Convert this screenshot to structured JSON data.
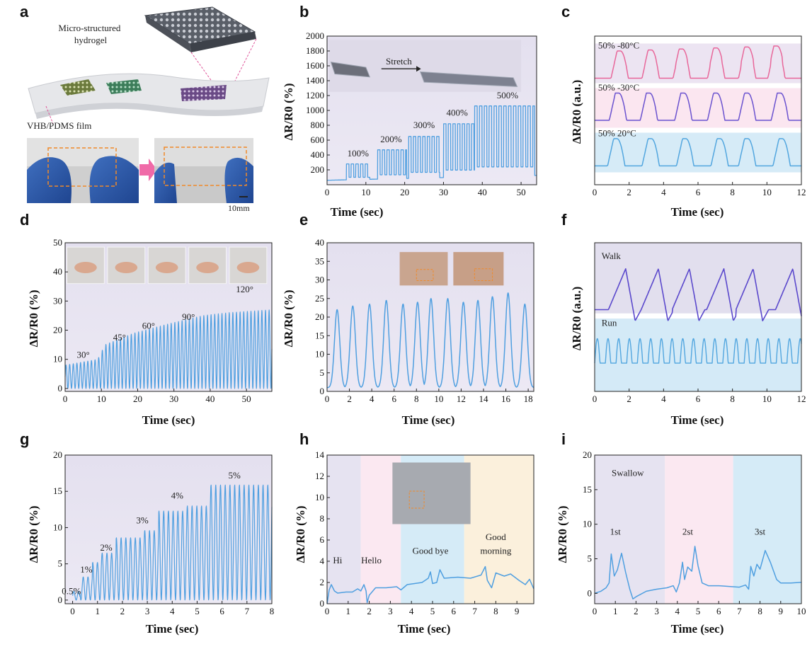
{
  "panels": {
    "a": {
      "label": "a",
      "hydrogel_label": "Micro-structured hydrogel",
      "hydrogel_line1": "Micro-structured",
      "hydrogel_line2": "hydrogel",
      "film_label": "VHB/PDMS film",
      "scale_label": "10mm"
    },
    "b": {
      "label": "b",
      "ylabel": "ΔR/R0 (%)",
      "xlabel": "Time (sec)",
      "inset_label": "Stretch"
    },
    "c": {
      "label": "c",
      "ylabel": "ΔR/R0 (a.u.)",
      "xlabel": "Time (sec)"
    },
    "d": {
      "label": "d",
      "ylabel": "ΔR/R0 (%)",
      "xlabel": "Time (sec)"
    },
    "e": {
      "label": "e",
      "ylabel": "ΔR/R0 (%)",
      "xlabel": "Time (sec)"
    },
    "f": {
      "label": "f",
      "ylabel": "ΔR/R0 (a.u.)",
      "xlabel": "Time (sec)"
    },
    "g": {
      "label": "g",
      "ylabel": "ΔR/R0 (%)",
      "xlabel": "Time (sec)"
    },
    "h": {
      "label": "h",
      "ylabel": "ΔR/R0 (%)",
      "xlabel": "Time (sec)"
    },
    "i": {
      "label": "i",
      "ylabel": "ΔR/R0 (%)",
      "xlabel": "Time (sec)"
    }
  },
  "chart_data": [
    {
      "id": "b",
      "type": "line",
      "xlabel": "Time (sec)",
      "ylabel": "ΔR/R0 (%)",
      "xlim": [
        0,
        54
      ],
      "ylim": [
        0,
        2000
      ],
      "xticks": [
        0,
        10,
        20,
        30,
        40,
        50
      ],
      "yticks": [
        200,
        400,
        600,
        800,
        1000,
        1200,
        1400,
        1600,
        1800,
        2000
      ],
      "color": "#4f9fe0",
      "baseline": 60,
      "segments": [
        {
          "t0": 5,
          "t1": 11,
          "period": 1.2,
          "peak": 280
        },
        {
          "t0": 13,
          "t1": 20.5,
          "period": 1.2,
          "peak": 470
        },
        {
          "t0": 21,
          "t1": 29,
          "period": 1.2,
          "peak": 650
        },
        {
          "t0": 30,
          "t1": 38,
          "period": 1.2,
          "peak": 820
        },
        {
          "t0": 38,
          "t1": 53.5,
          "period": 1.25,
          "peak": 1060
        }
      ],
      "annotations": [
        {
          "text": "100%",
          "x": 8,
          "y": 380
        },
        {
          "text": "200%",
          "x": 16.5,
          "y": 570
        },
        {
          "text": "300%",
          "x": 25,
          "y": 760
        },
        {
          "text": "400%",
          "x": 33.5,
          "y": 930
        },
        {
          "text": "500%",
          "x": 46.5,
          "y": 1160
        }
      ]
    },
    {
      "id": "c",
      "type": "line",
      "xlabel": "Time (sec)",
      "ylabel": "ΔR/R0 (a.u.)",
      "xlim": [
        0,
        12
      ],
      "xticks": [
        0,
        2,
        4,
        6,
        8,
        10,
        12
      ],
      "series": [
        {
          "name": "50% -80°C",
          "color": "#e8679a",
          "band": "#ece4f2",
          "peaks": [
            1.5,
            3.3,
            5.1,
            7.1,
            8.9,
            10.6
          ]
        },
        {
          "name": "50% -30°C",
          "color": "#6a52cf",
          "band": "#fbe6f0",
          "peaks": [
            1.4,
            3.2,
            5.2,
            7.1,
            8.9,
            10.8
          ]
        },
        {
          "name": "50% 20°C",
          "color": "#52a6df",
          "band": "#d6ebf7",
          "peaks": [
            1.3,
            3.3,
            5.3,
            7.3,
            8.9,
            10.9
          ]
        }
      ]
    },
    {
      "id": "d",
      "type": "line",
      "xlabel": "Time (sec)",
      "ylabel": "ΔR/R0 (%)",
      "xlim": [
        0,
        57
      ],
      "ylim": [
        -1,
        50
      ],
      "xticks": [
        0,
        10,
        20,
        30,
        40,
        50
      ],
      "yticks": [
        0,
        10,
        20,
        30,
        40,
        50
      ],
      "color": "#4f9fe0",
      "period": 1.0,
      "envelope": [
        [
          0,
          8
        ],
        [
          9,
          10
        ],
        [
          11,
          15
        ],
        [
          19,
          19
        ],
        [
          28,
          22
        ],
        [
          38,
          25
        ],
        [
          45,
          26
        ],
        [
          57,
          27
        ]
      ],
      "annotations": [
        {
          "text": "30°",
          "x": 5,
          "y": 10.5
        },
        {
          "text": "45°",
          "x": 15,
          "y": 16.5
        },
        {
          "text": "60°",
          "x": 23,
          "y": 20.5
        },
        {
          "text": "90°",
          "x": 34,
          "y": 23.5
        },
        {
          "text": "120°",
          "x": 49.5,
          "y": 33
        }
      ]
    },
    {
      "id": "e",
      "type": "line",
      "xlabel": "Time (sec)",
      "ylabel": "ΔR/R0 (%)",
      "xlim": [
        0,
        18.5
      ],
      "ylim": [
        0,
        40
      ],
      "xticks": [
        0,
        2,
        4,
        6,
        8,
        10,
        12,
        14,
        16,
        18
      ],
      "yticks": [
        0,
        5,
        10,
        15,
        20,
        25,
        30,
        35,
        40
      ],
      "color": "#4f9fe0",
      "baseline": 1.0,
      "peaks": [
        [
          0.9,
          22
        ],
        [
          2.3,
          23
        ],
        [
          3.8,
          23.5
        ],
        [
          5.3,
          24.5
        ],
        [
          6.8,
          23.5
        ],
        [
          8.1,
          24
        ],
        [
          9.3,
          25
        ],
        [
          10.8,
          25
        ],
        [
          12.2,
          24
        ],
        [
          13.5,
          24.5
        ],
        [
          14.8,
          25.5
        ],
        [
          16.2,
          26.5
        ],
        [
          17.7,
          23.5
        ]
      ]
    },
    {
      "id": "f",
      "type": "line",
      "xlabel": "Time (sec)",
      "ylabel": "ΔR/R0 (a.u.)",
      "xlim": [
        0,
        12
      ],
      "xticks": [
        0,
        2,
        4,
        6,
        8,
        10,
        12
      ],
      "series": [
        {
          "name": "Walk",
          "color": "#5a48cc",
          "peaks": [
            1.8,
            3.7,
            5.5,
            7.5,
            9.2,
            11.5
          ]
        },
        {
          "name": "Run",
          "color": "#52a6df",
          "period": 0.62
        }
      ]
    },
    {
      "id": "g",
      "type": "line",
      "xlabel": "Time (sec)",
      "ylabel": "ΔR/R0 (%)",
      "xlim": [
        -0.3,
        8
      ],
      "ylim": [
        -0.5,
        20
      ],
      "xticks": [
        0,
        1,
        2,
        3,
        4,
        5,
        6,
        7,
        8
      ],
      "yticks": [
        0,
        5,
        10,
        15,
        20
      ],
      "color": "#4f9fe0",
      "period": 0.19,
      "steps": [
        [
          0,
          0.3,
          1.2
        ],
        [
          0.3,
          0.8,
          3.2
        ],
        [
          0.8,
          1.15,
          5.2
        ],
        [
          1.15,
          1.75,
          6.5
        ],
        [
          1.75,
          2.75,
          8.6
        ],
        [
          2.75,
          3.45,
          9.6
        ],
        [
          3.45,
          4.5,
          12.3
        ],
        [
          4.5,
          5.45,
          13.0
        ],
        [
          5.45,
          8,
          15.9
        ]
      ],
      "annotations": [
        {
          "text": "0.5%",
          "x": -0.05,
          "y": 0.8
        },
        {
          "text": "1%",
          "x": 0.55,
          "y": 3.8
        },
        {
          "text": "2%",
          "x": 1.35,
          "y": 6.8
        },
        {
          "text": "3%",
          "x": 2.8,
          "y": 10.6
        },
        {
          "text": "4%",
          "x": 4.2,
          "y": 14.0
        },
        {
          "text": "5%",
          "x": 6.5,
          "y": 16.8
        }
      ]
    },
    {
      "id": "h",
      "type": "line",
      "xlabel": "Time (sec)",
      "ylabel": "ΔR/R0 (%)",
      "xlim": [
        0,
        9.8
      ],
      "ylim": [
        0,
        14
      ],
      "xticks": [
        0,
        1,
        2,
        3,
        4,
        5,
        6,
        7,
        8,
        9
      ],
      "yticks": [
        0,
        2,
        4,
        6,
        8,
        10,
        12,
        14
      ],
      "color": "#4f9fe0",
      "bands": [
        {
          "x0": 0,
          "x1": 1.6,
          "color": "#e6e3f1"
        },
        {
          "x0": 1.6,
          "x1": 3.5,
          "color": "#fbe8f1"
        },
        {
          "x0": 3.5,
          "x1": 6.5,
          "color": "#d5ebf7"
        },
        {
          "x0": 6.5,
          "x1": 9.8,
          "color": "#fbf0dc"
        }
      ],
      "labels": [
        {
          "text": "Hi",
          "x": 0.5,
          "y": 3.8
        },
        {
          "text": "Hello",
          "x": 2.1,
          "y": 3.8
        },
        {
          "text": "Good bye",
          "x": 4.9,
          "y": 4.7
        },
        {
          "text": "Good",
          "x": 8.0,
          "y": 6.0
        },
        {
          "text": "morning",
          "x": 8.0,
          "y": 4.7
        }
      ],
      "points": [
        [
          0,
          0
        ],
        [
          0.1,
          1.3
        ],
        [
          0.2,
          1.8
        ],
        [
          0.35,
          1.2
        ],
        [
          0.5,
          1.0
        ],
        [
          0.9,
          1.1
        ],
        [
          1.2,
          1.1
        ],
        [
          1.45,
          1.4
        ],
        [
          1.6,
          1.2
        ],
        [
          1.75,
          1.8
        ],
        [
          1.85,
          1.2
        ],
        [
          1.9,
          0.1
        ],
        [
          2.0,
          0.8
        ],
        [
          2.3,
          1.5
        ],
        [
          2.8,
          1.5
        ],
        [
          3.3,
          1.6
        ],
        [
          3.5,
          1.3
        ],
        [
          3.8,
          1.8
        ],
        [
          4.5,
          2.0
        ],
        [
          4.8,
          2.4
        ],
        [
          4.9,
          3.0
        ],
        [
          5.0,
          1.9
        ],
        [
          5.2,
          2.0
        ],
        [
          5.35,
          3.2
        ],
        [
          5.55,
          2.4
        ],
        [
          6.2,
          2.5
        ],
        [
          6.8,
          2.4
        ],
        [
          7.3,
          2.7
        ],
        [
          7.5,
          3.5
        ],
        [
          7.6,
          2.2
        ],
        [
          7.8,
          1.5
        ],
        [
          8.0,
          2.9
        ],
        [
          8.4,
          2.6
        ],
        [
          8.7,
          2.8
        ],
        [
          9.1,
          2.2
        ],
        [
          9.4,
          1.8
        ],
        [
          9.6,
          2.3
        ],
        [
          9.8,
          1.4
        ]
      ]
    },
    {
      "id": "i",
      "type": "line",
      "xlabel": "Time (sec)",
      "ylabel": "ΔR/R0 (%)",
      "xlim": [
        0,
        10
      ],
      "ylim": [
        -1.5,
        20
      ],
      "xticks": [
        0,
        1,
        2,
        3,
        4,
        5,
        6,
        7,
        8,
        9,
        10
      ],
      "yticks": [
        0,
        5,
        10,
        15,
        20
      ],
      "color": "#4f9fe0",
      "bands": [
        {
          "x0": 0,
          "x1": 3.4,
          "color": "#e6e3f1"
        },
        {
          "x0": 3.4,
          "x1": 6.7,
          "color": "#fbe8f1"
        },
        {
          "x0": 6.7,
          "x1": 10,
          "color": "#d5ebf7"
        }
      ],
      "labels": [
        {
          "text": "Swallow",
          "x": 1.6,
          "y": 17
        },
        {
          "text": "1st",
          "x": 1.0,
          "y": 8.5
        },
        {
          "text": "2st",
          "x": 4.5,
          "y": 8.5
        },
        {
          "text": "3st",
          "x": 8.0,
          "y": 8.5
        }
      ],
      "points": [
        [
          0,
          0
        ],
        [
          0.3,
          0.3
        ],
        [
          0.55,
          0.8
        ],
        [
          0.7,
          1.5
        ],
        [
          0.8,
          5.7
        ],
        [
          0.95,
          2.5
        ],
        [
          1.1,
          3.4
        ],
        [
          1.3,
          5.8
        ],
        [
          1.5,
          3.0
        ],
        [
          1.7,
          0.6
        ],
        [
          1.85,
          -0.8
        ],
        [
          2.0,
          -0.5
        ],
        [
          2.5,
          0.3
        ],
        [
          3.0,
          0.6
        ],
        [
          3.5,
          0.8
        ],
        [
          3.8,
          1.1
        ],
        [
          3.95,
          0.2
        ],
        [
          4.1,
          1.5
        ],
        [
          4.25,
          4.5
        ],
        [
          4.35,
          2.0
        ],
        [
          4.5,
          3.8
        ],
        [
          4.7,
          3.2
        ],
        [
          4.85,
          6.8
        ],
        [
          5.0,
          4.0
        ],
        [
          5.2,
          1.5
        ],
        [
          5.5,
          1.1
        ],
        [
          6.0,
          1.1
        ],
        [
          6.5,
          1.0
        ],
        [
          7.0,
          0.9
        ],
        [
          7.3,
          1.2
        ],
        [
          7.45,
          0.6
        ],
        [
          7.55,
          3.9
        ],
        [
          7.7,
          2.5
        ],
        [
          7.85,
          4.2
        ],
        [
          8.0,
          3.5
        ],
        [
          8.25,
          6.2
        ],
        [
          8.5,
          4.5
        ],
        [
          8.8,
          2.0
        ],
        [
          9.0,
          1.5
        ],
        [
          9.5,
          1.5
        ],
        [
          10,
          1.6
        ]
      ]
    }
  ]
}
